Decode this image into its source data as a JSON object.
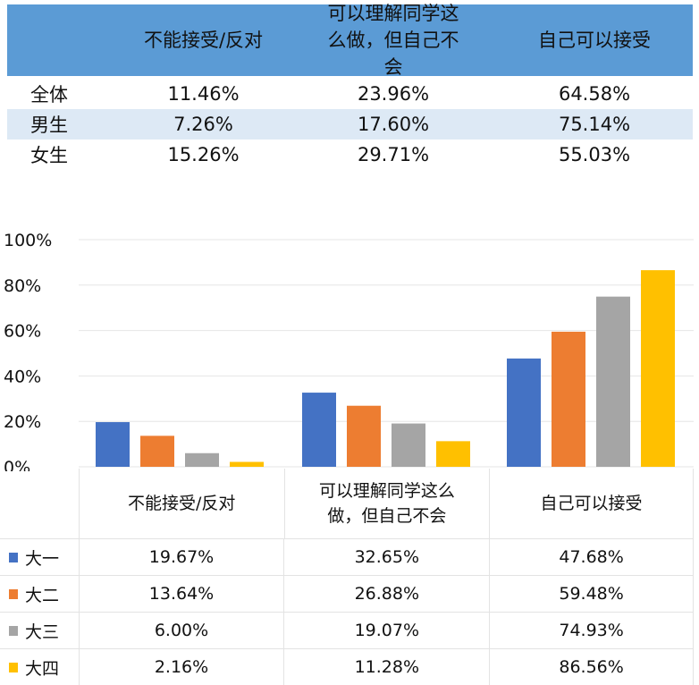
{
  "summary_table": {
    "headers": [
      "不能接受/反对",
      "可以理解同学这么做，但自己不会",
      "自己可以接受"
    ],
    "rows": [
      {
        "label": "全体",
        "values": [
          "11.46%",
          "23.96%",
          "64.58%"
        ]
      },
      {
        "label": "男生",
        "values": [
          "7.26%",
          "17.60%",
          "75.14%"
        ]
      },
      {
        "label": "女生",
        "values": [
          "15.26%",
          "29.71%",
          "55.03%"
        ]
      }
    ]
  },
  "chart_data": {
    "type": "bar",
    "categories": [
      "不能接受/反对",
      "可以理解同学这么做，但自己不会",
      "自己可以接受"
    ],
    "series": [
      {
        "name": "大一",
        "color": "#4472c4",
        "values": [
          19.67,
          32.65,
          47.68
        ],
        "labels": [
          "19.67%",
          "32.65%",
          "47.68%"
        ]
      },
      {
        "name": "大二",
        "color": "#ed7d31",
        "values": [
          13.64,
          26.88,
          59.48
        ],
        "labels": [
          "13.64%",
          "26.88%",
          "59.48%"
        ]
      },
      {
        "name": "大三",
        "color": "#a5a5a5",
        "values": [
          6.0,
          19.07,
          74.93
        ],
        "labels": [
          "6.00%",
          "19.07%",
          "74.93%"
        ]
      },
      {
        "name": "大四",
        "color": "#ffc000",
        "values": [
          2.16,
          11.28,
          86.56
        ],
        "labels": [
          "2.16%",
          "11.28%",
          "86.56%"
        ]
      }
    ],
    "yticks": [
      "0%",
      "20%",
      "40%",
      "60%",
      "80%",
      "100%"
    ],
    "ylim": [
      0,
      100
    ],
    "grid": true,
    "legend": "data-table"
  }
}
